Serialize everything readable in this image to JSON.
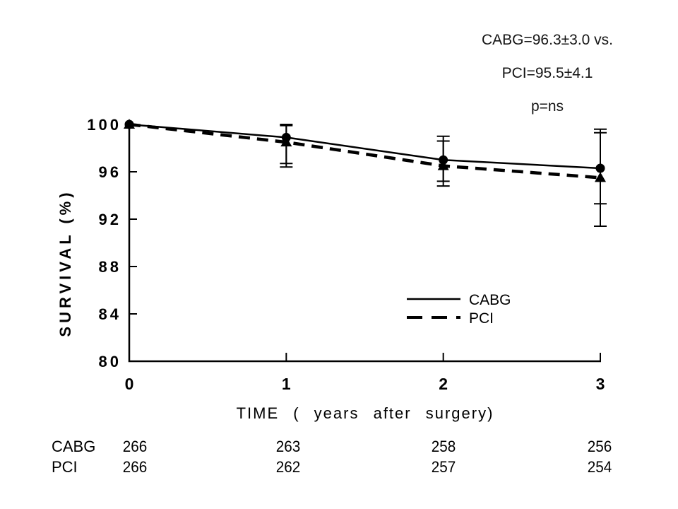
{
  "annotation": {
    "line1": "CABG=96.3±3.0 vs.",
    "line2": "PCI=95.5±4.1",
    "line3": "p=ns"
  },
  "chart_data": {
    "type": "line",
    "title": "",
    "x": [
      0,
      1,
      2,
      3
    ],
    "xlabel": "TIME ( years after surgery)",
    "ylabel": "SURVIVAL (%)",
    "xlim": [
      0,
      3
    ],
    "ylim": [
      80,
      100
    ],
    "yticks": [
      100,
      96,
      92,
      88,
      84,
      80
    ],
    "xticks": [
      0,
      1,
      2,
      3
    ],
    "grid": false,
    "legend_position": "inside right",
    "series": [
      {
        "name": "CABG",
        "line_style": "solid",
        "marker": "circle",
        "color": "#000000",
        "values": [
          100,
          98.9,
          97.0,
          96.3
        ],
        "err_low": [
          null,
          96.7,
          95.2,
          93.3
        ],
        "err_high": [
          null,
          100.0,
          99.0,
          99.3
        ]
      },
      {
        "name": "PCI",
        "line_style": "dashed",
        "marker": "triangle",
        "color": "#000000",
        "values": [
          100,
          98.5,
          96.5,
          95.5
        ],
        "err_low": [
          null,
          96.4,
          94.8,
          91.4
        ],
        "err_high": [
          null,
          99.9,
          98.6,
          99.6
        ]
      }
    ]
  },
  "at_risk_table": {
    "rows": [
      {
        "label": "CABG",
        "values": [
          "266",
          "263",
          "258",
          "256"
        ]
      },
      {
        "label": "PCI",
        "values": [
          "266",
          "262",
          "257",
          "254"
        ]
      }
    ]
  },
  "colors": {
    "foreground": "#000000",
    "background": "#ffffff"
  }
}
